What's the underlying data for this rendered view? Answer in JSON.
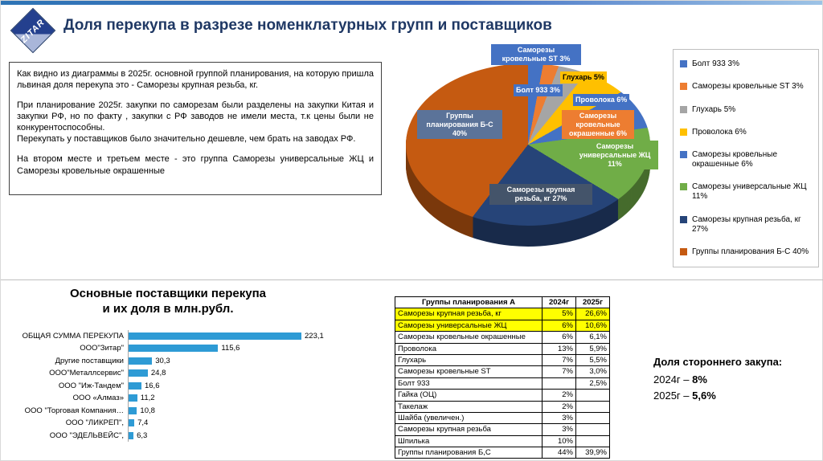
{
  "slide": {
    "title": "Доля перекупа в разрезе номенклатурных групп и поставщиков",
    "logo_text": "ZITAR"
  },
  "commentary": {
    "p1": "Как видно из диаграммы в 2025г. основной группой планирования, на которую пришла львиная доля перекупа это - Саморезы крупная резьба, кг.",
    "p2": "При планирование 2025г. закупки по саморезам были разделены на закупки Китая и закупки РФ, но по факту , закупки с РФ заводов не имели места, т.к цены были не конкурентоспособны.",
    "p3": "Перекупать у поставщиков было значительно дешевле, чем брать на заводах РФ.",
    "p4": "На втором месте и третьем месте - это группа Саморезы универсальные ЖЦ и  Саморезы кровельные окрашенные"
  },
  "chart_data": [
    {
      "type": "pie",
      "style": "3d",
      "legend_position": "right",
      "slices": [
        {
          "label": "Болт 933",
          "pct": 3,
          "color": "#4472C4",
          "legend": "Болт 933 3%"
        },
        {
          "label": "Саморезы кровельные ST",
          "pct": 3,
          "color": "#ED7D31",
          "legend": "Саморезы кровельные ST 3%"
        },
        {
          "label": "Глухарь",
          "pct": 5,
          "color": "#A5A5A5",
          "legend": "Глухарь 5%"
        },
        {
          "label": "Проволока",
          "pct": 6,
          "color": "#FFC000",
          "legend": "Проволока 6%"
        },
        {
          "label": "Саморезы кровельные окрашенные",
          "pct": 6,
          "color": "#4472C4",
          "legend": "Саморезы кровельные окрашенные 6%"
        },
        {
          "label": "Саморезы универсальные ЖЦ",
          "pct": 11,
          "color": "#70AD47",
          "legend": "Саморезы универсальные ЖЦ 11%"
        },
        {
          "label": "Саморезы крупная резьба, кг",
          "pct": 27,
          "color": "#264478",
          "legend": "Саморезы крупная резьба, кг 27%"
        },
        {
          "label": "Группы планирования Б-С",
          "pct": 40,
          "color": "#C55A11",
          "legend": "Группы планирования Б-С  40%"
        }
      ]
    },
    {
      "type": "bar",
      "orientation": "horizontal",
      "title": "Основные поставщики перекупа и их доля в млн.рубл.",
      "title_lines": [
        "Основные поставщики перекупа",
        "и их доля в млн.рубл."
      ],
      "categories": [
        "ОБЩАЯ СУММА ПЕРЕКУПА",
        "ООО\"Зитар\"",
        "Другие поставщики",
        "ООО\"Металлсервис\"",
        "ООО \"Иж-Тандем\"",
        "ООО «Алмаз»",
        "ООО \"Торговая Компания…",
        "ООО \"ЛИКРЕП\",",
        "ООО \"ЭДЕЛЬВЕЙС\","
      ],
      "values": [
        223.1,
        115.6,
        30.3,
        24.8,
        16.6,
        11.2,
        10.8,
        7.4,
        6.3
      ],
      "value_labels": [
        "223,1",
        "115,6",
        "30,3",
        "24,8",
        "16,6",
        "11,2",
        "10,8",
        "7,4",
        "6,3"
      ],
      "bar_color": "#2E9BD5"
    },
    {
      "type": "table",
      "columns": [
        "Группы планирования А",
        "2024г",
        "2025г"
      ],
      "highlight_color": "#FFFF00",
      "rows": [
        {
          "name": "Саморезы крупная резьба, кг",
          "y2024": "5%",
          "y2025": "26,6%",
          "highlight": true
        },
        {
          "name": "Саморезы универсальные ЖЦ",
          "y2024": "6%",
          "y2025": "10,6%",
          "highlight": true
        },
        {
          "name": "Саморезы кровельные окрашенные",
          "y2024": "6%",
          "y2025": "6,1%",
          "highlight": false
        },
        {
          "name": "Проволока",
          "y2024": "13%",
          "y2025": "5,9%",
          "highlight": false
        },
        {
          "name": "Глухарь",
          "y2024": "7%",
          "y2025": "5,5%",
          "highlight": false
        },
        {
          "name": "Саморезы кровельные ST",
          "y2024": "7%",
          "y2025": "3,0%",
          "highlight": false
        },
        {
          "name": "Болт 933",
          "y2024": "",
          "y2025": "2,5%",
          "highlight": false
        },
        {
          "name": "Гайка (ОЦ)",
          "y2024": "2%",
          "y2025": "",
          "highlight": false
        },
        {
          "name": "Такелаж",
          "y2024": "2%",
          "y2025": "",
          "highlight": false
        },
        {
          "name": "Шайба (увеличен.)",
          "y2024": "3%",
          "y2025": "",
          "highlight": false
        },
        {
          "name": "Саморезы крупная резьба",
          "y2024": "3%",
          "y2025": "",
          "highlight": false
        },
        {
          "name": "Шпилька",
          "y2024": "10%",
          "y2025": "",
          "highlight": false
        },
        {
          "name": "Группы планирования Б,С",
          "y2024": "44%",
          "y2025": "39,9%",
          "highlight": false
        }
      ]
    }
  ],
  "pie_callouts": [
    {
      "lines": [
        "Саморезы",
        "кровельные ST 3%"
      ],
      "bg": "#4472C4",
      "fg": "#FFFFFF"
    },
    {
      "lines": [
        "Глухарь 5%"
      ],
      "bg": "#FFC000",
      "fg": "#000000"
    },
    {
      "lines": [
        "Болт 933 3%"
      ],
      "bg": "#4472C4",
      "fg": "#FFFFFF"
    },
    {
      "lines": [
        "Проволока 6%"
      ],
      "bg": "#4472C4",
      "fg": "#FFFFFF"
    },
    {
      "lines": [
        "Саморезы",
        "кровельные",
        "окрашенные 6%"
      ],
      "bg": "#ED7D31",
      "fg": "#FFFFFF"
    },
    {
      "lines": [
        "Саморезы",
        "универсальные ЖЦ",
        "11%"
      ],
      "bg": "#70AD47",
      "fg": "#FFFFFF"
    },
    {
      "lines": [
        "Саморезы крупная",
        "резьба, кг 27%"
      ],
      "bg": "#44546A",
      "fg": "#FFFFFF"
    },
    {
      "lines": [
        "Группы",
        "планирования Б-С",
        "40%"
      ],
      "bg": "#5B7399",
      "fg": "#FFFFFF"
    }
  ],
  "side_note": {
    "title": "Доля стороннего закупа:",
    "lines": [
      {
        "prefix": "2024г – ",
        "value": "8%"
      },
      {
        "prefix": "2025г – ",
        "value": "5,6%"
      }
    ]
  }
}
